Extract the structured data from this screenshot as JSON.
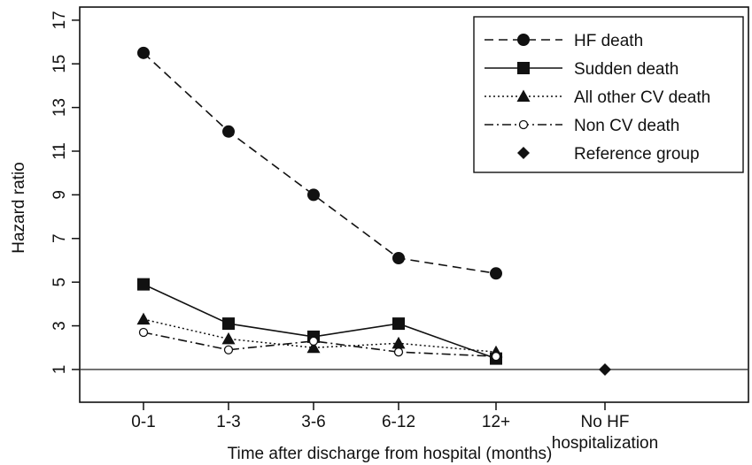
{
  "chart_data": {
    "type": "line",
    "xlabel": "Time after discharge from hospital (months)",
    "ylabel": "Hazard ratio",
    "categories": [
      "0-1",
      "1-3",
      "3-6",
      "6-12",
      "12+",
      "No HF hospitalization"
    ],
    "category_label_lines": [
      [
        "0-1"
      ],
      [
        "1-3"
      ],
      [
        "3-6"
      ],
      [
        "6-12"
      ],
      [
        "12+"
      ],
      [
        "No HF",
        "hospitalization"
      ]
    ],
    "yticks": [
      1,
      3,
      5,
      7,
      9,
      11,
      13,
      15,
      17
    ],
    "ylim": [
      -0.5,
      17.6
    ],
    "reference_line": 1,
    "grid": false,
    "legend_position": "top-right",
    "series": [
      {
        "name": "HF death",
        "marker": "circle-filled",
        "dash": "dashed",
        "color": "#111111",
        "x": [
          "0-1",
          "1-3",
          "3-6",
          "6-12",
          "12+"
        ],
        "values": [
          15.5,
          11.9,
          9.0,
          6.1,
          5.4
        ]
      },
      {
        "name": "Sudden death",
        "marker": "square-filled",
        "dash": "solid",
        "color": "#111111",
        "x": [
          "0-1",
          "1-3",
          "3-6",
          "6-12",
          "12+"
        ],
        "values": [
          4.9,
          3.1,
          2.5,
          3.1,
          1.5
        ]
      },
      {
        "name": "All other CV death",
        "marker": "triangle-filled",
        "dash": "dotted",
        "color": "#111111",
        "x": [
          "0-1",
          "1-3",
          "3-6",
          "6-12",
          "12+"
        ],
        "values": [
          3.3,
          2.4,
          2.0,
          2.2,
          1.8
        ]
      },
      {
        "name": "Non CV death",
        "marker": "circle-open",
        "dash": "dashdot",
        "color": "#111111",
        "x": [
          "0-1",
          "1-3",
          "3-6",
          "6-12",
          "12+"
        ],
        "values": [
          2.7,
          1.9,
          2.3,
          1.8,
          1.6
        ]
      },
      {
        "name": "Reference group",
        "marker": "diamond-filled",
        "dash": "none",
        "color": "#111111",
        "x": [
          "No HF hospitalization"
        ],
        "values": [
          1.0
        ]
      }
    ]
  }
}
